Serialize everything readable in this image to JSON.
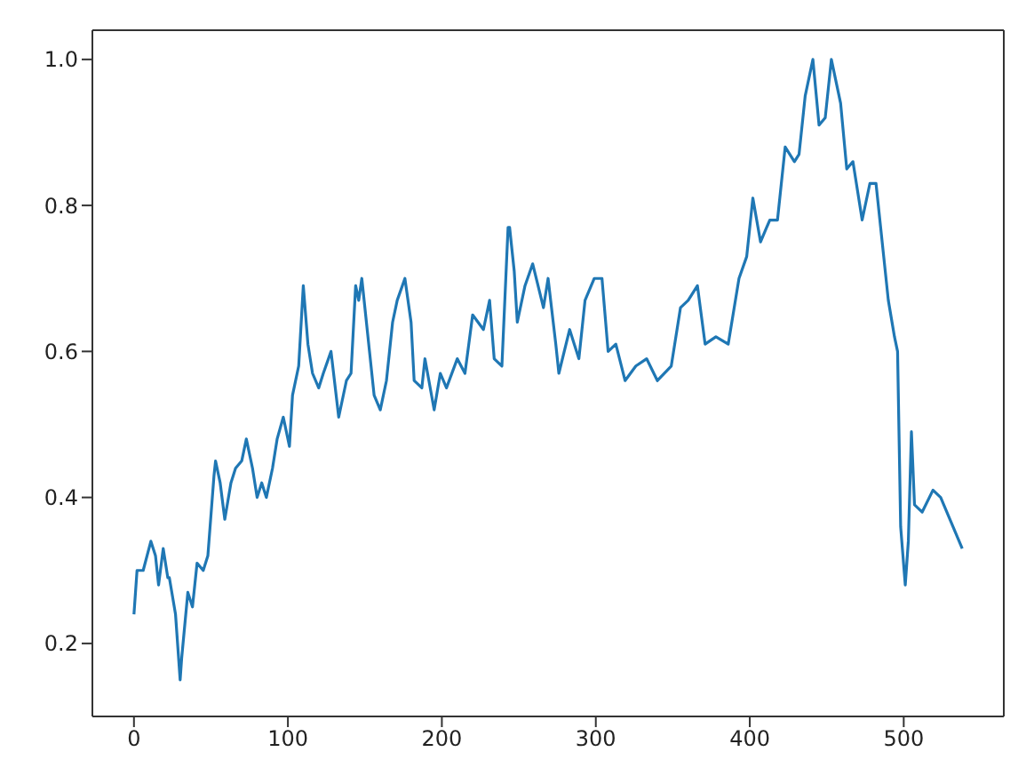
{
  "chart_data": {
    "type": "line",
    "x": [
      0,
      2,
      6,
      11,
      14,
      16,
      19,
      22,
      23,
      27,
      30,
      31,
      35,
      38,
      41,
      45,
      48,
      52,
      53,
      56,
      59,
      63,
      66,
      70,
      73,
      77,
      80,
      83,
      86,
      90,
      93,
      97,
      101,
      103,
      107,
      110,
      113,
      116,
      120,
      123,
      128,
      133,
      138,
      141,
      144,
      146,
      148,
      153,
      156,
      160,
      164,
      168,
      171,
      176,
      180,
      182,
      187,
      189,
      195,
      199,
      203,
      210,
      215,
      220,
      227,
      231,
      234,
      239,
      243,
      244,
      247,
      249,
      254,
      259,
      266,
      269,
      274,
      276,
      283,
      286,
      289,
      293,
      299,
      304,
      308,
      313,
      319,
      326,
      333,
      340,
      349,
      355,
      360,
      366,
      371,
      378,
      386,
      393,
      398,
      402,
      407,
      411,
      413,
      418,
      423,
      429,
      432,
      436,
      441,
      445,
      449,
      453,
      459,
      463,
      467,
      473,
      478,
      482,
      487,
      490,
      494,
      496,
      498,
      501,
      503,
      505,
      507,
      512,
      519,
      524,
      538
    ],
    "series": [
      {
        "color": "#1f77b4",
        "values": [
          0.24,
          0.3,
          0.3,
          0.34,
          0.32,
          0.28,
          0.33,
          0.29,
          0.29,
          0.24,
          0.15,
          0.18,
          0.27,
          0.25,
          0.31,
          0.3,
          0.32,
          0.43,
          0.45,
          0.42,
          0.37,
          0.42,
          0.44,
          0.45,
          0.48,
          0.44,
          0.4,
          0.42,
          0.4,
          0.44,
          0.48,
          0.51,
          0.47,
          0.54,
          0.58,
          0.69,
          0.61,
          0.57,
          0.55,
          0.57,
          0.6,
          0.51,
          0.56,
          0.57,
          0.69,
          0.67,
          0.7,
          0.6,
          0.54,
          0.52,
          0.56,
          0.64,
          0.67,
          0.7,
          0.64,
          0.56,
          0.55,
          0.59,
          0.52,
          0.57,
          0.55,
          0.59,
          0.57,
          0.65,
          0.63,
          0.67,
          0.59,
          0.58,
          0.77,
          0.77,
          0.71,
          0.64,
          0.69,
          0.72,
          0.66,
          0.7,
          0.61,
          0.57,
          0.63,
          0.61,
          0.59,
          0.67,
          0.7,
          0.7,
          0.6,
          0.61,
          0.56,
          0.58,
          0.59,
          0.56,
          0.58,
          0.66,
          0.67,
          0.69,
          0.61,
          0.62,
          0.61,
          0.7,
          0.73,
          0.81,
          0.75,
          0.77,
          0.78,
          0.78,
          0.88,
          0.86,
          0.87,
          0.95,
          1.0,
          0.91,
          0.92,
          1.0,
          0.94,
          0.85,
          0.86,
          0.78,
          0.83,
          0.83,
          0.73,
          0.67,
          0.62,
          0.6,
          0.36,
          0.28,
          0.34,
          0.49,
          0.39,
          0.38,
          0.41,
          0.4,
          0.33
        ]
      }
    ],
    "xlim": [
      -27,
      565
    ],
    "ylim": [
      0.1,
      1.04
    ],
    "xticks": [
      0,
      100,
      200,
      300,
      400,
      500
    ],
    "yticks": [
      0.2,
      0.4,
      0.6,
      0.8,
      {
        "value": 1,
        "label": "1.0"
      }
    ]
  }
}
